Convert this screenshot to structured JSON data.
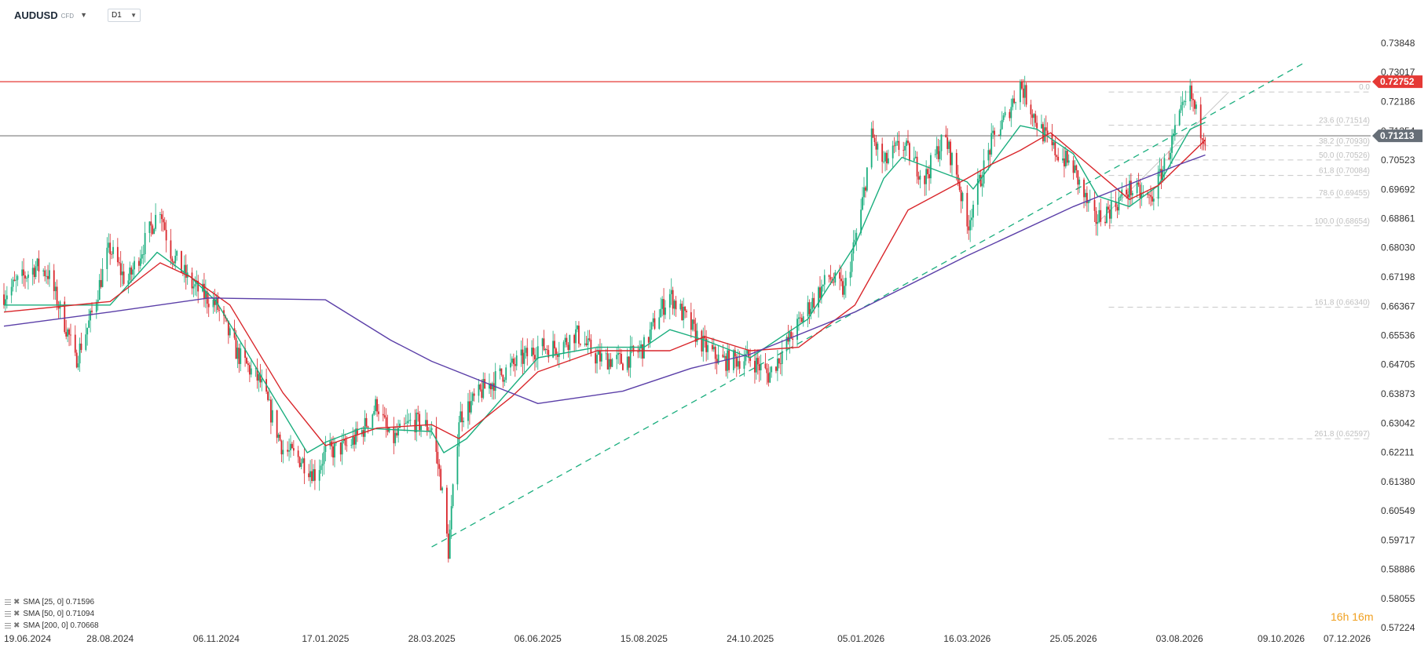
{
  "toolbar": {
    "symbol": "AUDUSD",
    "symbol_type": "CFD",
    "timeframe": "D1"
  },
  "countdown": {
    "hours": "16",
    "hours_unit": "h",
    "minutes": "16",
    "minutes_unit": "m"
  },
  "legend": [
    {
      "label": "SMA [25, 0] 0.71596",
      "color": "#1aae7e"
    },
    {
      "label": "SMA [50, 0] 0.71094",
      "color": "#d9262b"
    },
    {
      "label": "SMA [200, 0] 0.70668",
      "color": "#5b3fa8"
    }
  ],
  "chart_data": {
    "type": "candlestick",
    "title": "",
    "xlabel": "",
    "ylabel": "",
    "ylim": [
      0.57224,
      0.7426
    ],
    "grid": false,
    "y_ticks": [
      "0.73848",
      "0.73017",
      "0.72186",
      "0.71354",
      "0.70523",
      "0.69692",
      "0.68861",
      "0.68030",
      "0.67198",
      "0.66367",
      "0.65536",
      "0.64705",
      "0.63873",
      "0.63042",
      "0.62211",
      "0.61380",
      "0.60549",
      "0.59717",
      "0.58886",
      "0.58055",
      "0.57224"
    ],
    "x_ticks": [
      "19.06.2024",
      "28.08.2024",
      "06.11.2024",
      "17.01.2025",
      "28.03.2025",
      "06.06.2025",
      "15.08.2025",
      "24.10.2025",
      "05.01.2026",
      "16.03.2026",
      "25.05.2026",
      "03.08.2026",
      "09.10.2026",
      "07.12.2026"
    ],
    "current_price": {
      "value": 0.71213,
      "label": "0.71213",
      "color": "#666e77"
    },
    "resistance": {
      "value": 0.72752,
      "label": "0.72752",
      "color": "#e53935"
    },
    "fibonacci": [
      {
        "label": "0.0",
        "value": 0.7246
      },
      {
        "label": "23.6 (0.71514)",
        "value": 0.71514
      },
      {
        "label": "38.2 (0.70930)",
        "value": 0.7093
      },
      {
        "label": "50.0 (0.70526)",
        "value": 0.70526
      },
      {
        "label": "61.8 (0.70084)",
        "value": 0.70084
      },
      {
        "label": "78.6 (0.69455)",
        "value": 0.69455
      },
      {
        "label": "100.0 (0.68654)",
        "value": 0.68654
      },
      {
        "label": "161.8 (0.66340)",
        "value": 0.6634
      },
      {
        "label": "261.8 (0.62597)",
        "value": 0.62597
      }
    ],
    "trendline": {
      "points": [
        [
          "28.03.2025",
          0.5952
        ],
        [
          "13.08.2026",
          0.7156
        ]
      ],
      "color": "#1aae7e",
      "style": "dashed"
    },
    "price_path": [
      [
        "19.06.2024",
        0.667
      ],
      [
        "10.07.2024",
        0.675
      ],
      [
        "18.07.2024",
        0.673
      ],
      [
        "01.08.2024",
        0.655
      ],
      [
        "05.08.2024",
        0.648
      ],
      [
        "15.08.2024",
        0.66
      ],
      [
        "26.08.2024",
        0.678
      ],
      [
        "28.08.2024",
        0.68
      ],
      [
        "08.09.2024",
        0.67
      ],
      [
        "22.09.2024",
        0.684
      ],
      [
        "30.09.2024",
        0.692
      ],
      [
        "06.10.2024",
        0.68
      ],
      [
        "20.10.2024",
        0.67
      ],
      [
        "06.11.2024",
        0.664
      ],
      [
        "20.11.2024",
        0.65
      ],
      [
        "05.12.2024",
        0.642
      ],
      [
        "20.12.2024",
        0.623
      ],
      [
        "01.01.2025",
        0.62
      ],
      [
        "10.01.2025",
        0.616
      ],
      [
        "17.01.2025",
        0.622
      ],
      [
        "01.02.2025",
        0.624
      ],
      [
        "10.02.2025",
        0.628
      ],
      [
        "20.02.2025",
        0.636
      ],
      [
        "01.03.2025",
        0.625
      ],
      [
        "15.03.2025",
        0.631
      ],
      [
        "28.03.2025",
        0.629
      ],
      [
        "03.04.2025",
        0.614
      ],
      [
        "08.04.2025",
        0.594
      ],
      [
        "15.04.2025",
        0.632
      ],
      [
        "01.05.2025",
        0.64
      ],
      [
        "15.05.2025",
        0.645
      ],
      [
        "06.06.2025",
        0.652
      ],
      [
        "20.06.2025",
        0.652
      ],
      [
        "01.07.2025",
        0.656
      ],
      [
        "15.07.2025",
        0.649
      ],
      [
        "01.08.2025",
        0.648
      ],
      [
        "15.08.2025",
        0.652
      ],
      [
        "24.08.2025",
        0.661
      ],
      [
        "01.09.2025",
        0.667
      ],
      [
        "10.09.2025",
        0.661
      ],
      [
        "24.09.2025",
        0.652
      ],
      [
        "05.10.2025",
        0.648
      ],
      [
        "24.10.2025",
        0.649
      ],
      [
        "05.11.2025",
        0.644
      ],
      [
        "20.11.2025",
        0.655
      ],
      [
        "01.12.2025",
        0.663
      ],
      [
        "15.12.2025",
        0.672
      ],
      [
        "25.12.2025",
        0.668
      ],
      [
        "05.01.2026",
        0.69
      ],
      [
        "12.01.2026",
        0.712
      ],
      [
        "20.01.2026",
        0.704
      ],
      [
        "01.02.2026",
        0.71
      ],
      [
        "16.02.2026",
        0.7
      ],
      [
        "01.03.2026",
        0.712
      ],
      [
        "10.03.2026",
        0.7
      ],
      [
        "16.03.2026",
        0.686
      ],
      [
        "20.03.2026",
        0.693
      ],
      [
        "01.04.2026",
        0.71
      ],
      [
        "10.04.2026",
        0.717
      ],
      [
        "20.04.2026",
        0.727
      ],
      [
        "01.05.2026",
        0.716
      ],
      [
        "10.05.2026",
        0.709
      ],
      [
        "25.05.2026",
        0.703
      ],
      [
        "01.06.2026",
        0.695
      ],
      [
        "08.06.2026",
        0.688
      ],
      [
        "20.06.2026",
        0.692
      ],
      [
        "01.07.2026",
        0.697
      ],
      [
        "15.07.2026",
        0.694
      ],
      [
        "25.07.2026",
        0.705
      ],
      [
        "03.08.2026",
        0.717
      ],
      [
        "10.08.2026",
        0.724
      ],
      [
        "17.08.2026",
        0.714
      ],
      [
        "20.08.2026",
        0.7121
      ]
    ],
    "series": [
      {
        "name": "SMA [25, 0]",
        "color": "#1aae7e",
        "points": [
          [
            "19.06.2024",
            0.664
          ],
          [
            "28.08.2024",
            0.664
          ],
          [
            "28.09.2024",
            0.679
          ],
          [
            "20.10.2024",
            0.672
          ],
          [
            "06.11.2024",
            0.665
          ],
          [
            "15.12.2024",
            0.637
          ],
          [
            "05.01.2025",
            0.622
          ],
          [
            "17.01.2025",
            0.625
          ],
          [
            "10.02.2025",
            0.629
          ],
          [
            "28.03.2025",
            0.628
          ],
          [
            "05.04.2025",
            0.622
          ],
          [
            "20.04.2025",
            0.626
          ],
          [
            "06.06.2025",
            0.649
          ],
          [
            "15.07.2025",
            0.652
          ],
          [
            "15.08.2025",
            0.652
          ],
          [
            "01.09.2025",
            0.657
          ],
          [
            "24.09.2025",
            0.654
          ],
          [
            "24.10.2025",
            0.649
          ],
          [
            "01.12.2025",
            0.66
          ],
          [
            "01.01.2026",
            0.681
          ],
          [
            "20.01.2026",
            0.7
          ],
          [
            "01.02.2026",
            0.706
          ],
          [
            "16.03.2026",
            0.699
          ],
          [
            "20.03.2026",
            0.697
          ],
          [
            "20.04.2026",
            0.715
          ],
          [
            "01.05.2026",
            0.714
          ],
          [
            "25.05.2026",
            0.707
          ],
          [
            "10.06.2026",
            0.695
          ],
          [
            "01.07.2026",
            0.692
          ],
          [
            "20.07.2026",
            0.698
          ],
          [
            "10.08.2026",
            0.714
          ],
          [
            "20.08.2026",
            0.71596
          ]
        ]
      },
      {
        "name": "SMA [50, 0]",
        "color": "#d9262b",
        "points": [
          [
            "19.06.2024",
            0.662
          ],
          [
            "28.08.2024",
            0.665
          ],
          [
            "30.09.2024",
            0.676
          ],
          [
            "20.10.2024",
            0.672
          ],
          [
            "15.11.2024",
            0.664
          ],
          [
            "20.12.2024",
            0.639
          ],
          [
            "17.01.2025",
            0.624
          ],
          [
            "20.02.2025",
            0.629
          ],
          [
            "28.03.2025",
            0.63
          ],
          [
            "15.04.2025",
            0.626
          ],
          [
            "20.05.2025",
            0.638
          ],
          [
            "06.06.2025",
            0.645
          ],
          [
            "15.07.2025",
            0.651
          ],
          [
            "01.09.2025",
            0.651
          ],
          [
            "24.09.2025",
            0.655
          ],
          [
            "24.10.2025",
            0.651
          ],
          [
            "25.11.2025",
            0.652
          ],
          [
            "01.01.2026",
            0.664
          ],
          [
            "05.02.2026",
            0.691
          ],
          [
            "16.03.2026",
            0.7
          ],
          [
            "01.04.2026",
            0.704
          ],
          [
            "20.04.2026",
            0.708
          ],
          [
            "10.05.2026",
            0.713
          ],
          [
            "01.06.2026",
            0.705
          ],
          [
            "01.07.2026",
            0.694
          ],
          [
            "20.07.2026",
            0.698
          ],
          [
            "20.08.2026",
            0.71094
          ]
        ]
      },
      {
        "name": "SMA [200, 0]",
        "color": "#5b3fa8",
        "points": [
          [
            "19.06.2024",
            0.658
          ],
          [
            "28.08.2024",
            0.662
          ],
          [
            "01.11.2024",
            0.666
          ],
          [
            "17.01.2025",
            0.6655
          ],
          [
            "01.03.2025",
            0.654
          ],
          [
            "28.03.2025",
            0.648
          ],
          [
            "06.06.2025",
            0.636
          ],
          [
            "01.08.2025",
            0.6395
          ],
          [
            "15.09.2025",
            0.646
          ],
          [
            "24.10.2025",
            0.65
          ],
          [
            "01.01.2026",
            0.662
          ],
          [
            "16.03.2026",
            0.678
          ],
          [
            "25.05.2026",
            0.692
          ],
          [
            "03.08.2026",
            0.704
          ],
          [
            "20.08.2026",
            0.70668
          ]
        ]
      }
    ]
  }
}
